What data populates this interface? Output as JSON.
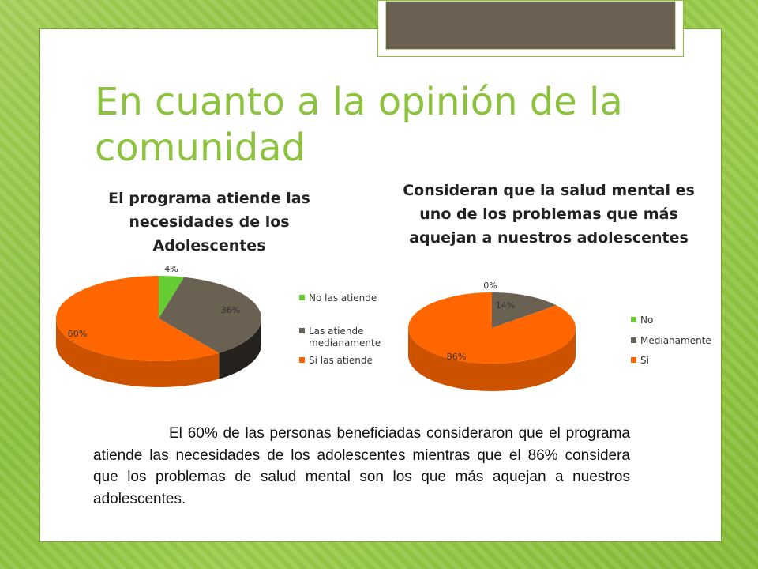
{
  "slide": {
    "title": "En cuanto a la opinión de la comunidad",
    "summary": "El 60% de las personas beneficiadas consideraron que el programa atiende las necesidades de los adolescentes mientras que el 86% considera que los problemas de salud mental son los que más aquejan a nuestros adolescentes."
  },
  "chart_data": [
    {
      "type": "pie",
      "title": "El programa atiende las necesidades de los Adolescentes",
      "categories": [
        "No  las atiende",
        "Las atiende medianamente",
        "Si las atiende"
      ],
      "values": [
        4,
        36,
        60
      ],
      "labels": [
        "4%",
        "36%",
        "60%"
      ],
      "colors": [
        "#66cc33",
        "#6b6152",
        "#ff6600"
      ],
      "legend": "right"
    },
    {
      "type": "pie",
      "title": "Consideran que la salud mental es uno de los problemas que más aquejan a nuestros adolescentes",
      "categories": [
        "No",
        "Medianamente",
        "Si"
      ],
      "values": [
        0,
        14,
        86
      ],
      "labels": [
        "0%",
        "14%",
        "86%"
      ],
      "colors": [
        "#66cc33",
        "#6b6152",
        "#ff6600"
      ],
      "legend": "right"
    }
  ]
}
